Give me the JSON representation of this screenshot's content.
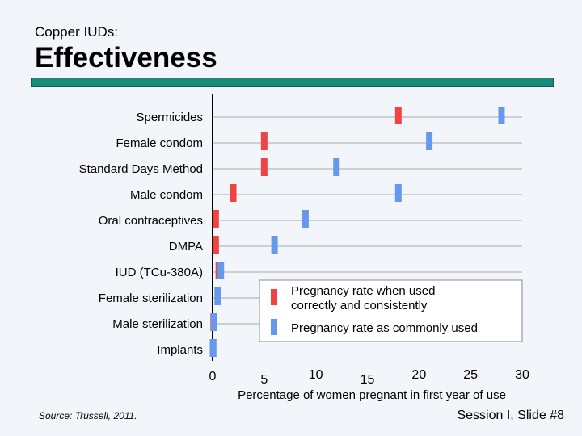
{
  "header": {
    "subtitle": "Copper IUDs:",
    "title": "Effectiveness",
    "accent_color": "#1a8a78"
  },
  "chart_data": {
    "type": "scatter",
    "categories": [
      "Spermicides",
      "Female condom",
      "Standard Days Method",
      "Male condom",
      "Oral contraceptives",
      "DMPA",
      "IUD (TCu-380A)",
      "Female sterilization",
      "Male sterilization",
      "Implants"
    ],
    "series": [
      {
        "name": "Pregnancy rate when used correctly and consistently",
        "color": "#ee4444",
        "values": [
          18,
          5,
          5,
          2,
          0.3,
          0.3,
          0.6,
          0.5,
          0.1,
          0.05
        ]
      },
      {
        "name": "Pregnancy rate as commonly used",
        "color": "#6699ee",
        "values": [
          28,
          21,
          12,
          18,
          9,
          6,
          0.8,
          0.5,
          0.15,
          0.05
        ]
      }
    ],
    "xlabel": "Percentage of women pregnant in first year of use",
    "xticks": [
      "0",
      "5",
      "10",
      "15",
      "20",
      "25",
      "30"
    ],
    "xlim": [
      0,
      30
    ],
    "legend_position": "right"
  },
  "footer": {
    "source": "Source: Trussell, 2011.",
    "slide": "Session I, Slide #8"
  }
}
